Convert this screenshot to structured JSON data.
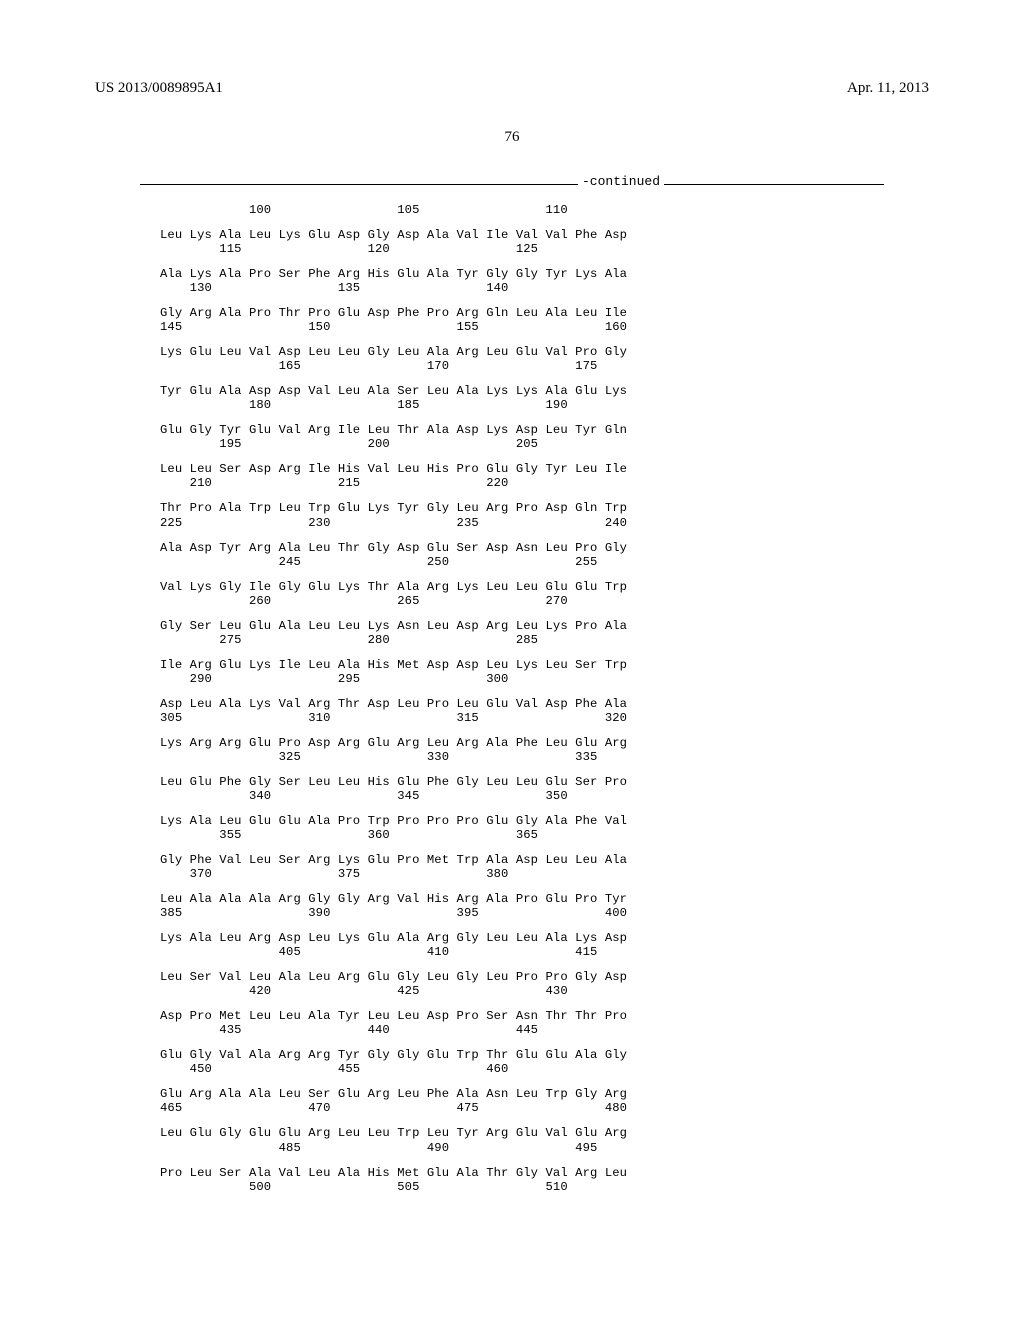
{
  "header": {
    "left": "US 2013/0089895A1",
    "right": "Apr. 11, 2013"
  },
  "page_number": "76",
  "continued_label": "-continued",
  "sequence_rows": [
    {
      "aa": "",
      "nums": "            100                 105                 110"
    },
    {
      "aa": "Leu Lys Ala Leu Lys Glu Asp Gly Asp Ala Val Ile Val Val Phe Asp",
      "nums": "        115                 120                 125"
    },
    {
      "aa": "Ala Lys Ala Pro Ser Phe Arg His Glu Ala Tyr Gly Gly Tyr Lys Ala",
      "nums": "    130                 135                 140"
    },
    {
      "aa": "Gly Arg Ala Pro Thr Pro Glu Asp Phe Pro Arg Gln Leu Ala Leu Ile",
      "nums": "145                 150                 155                 160"
    },
    {
      "aa": "Lys Glu Leu Val Asp Leu Leu Gly Leu Ala Arg Leu Glu Val Pro Gly",
      "nums": "                165                 170                 175"
    },
    {
      "aa": "Tyr Glu Ala Asp Asp Val Leu Ala Ser Leu Ala Lys Lys Ala Glu Lys",
      "nums": "            180                 185                 190"
    },
    {
      "aa": "Glu Gly Tyr Glu Val Arg Ile Leu Thr Ala Asp Lys Asp Leu Tyr Gln",
      "nums": "        195                 200                 205"
    },
    {
      "aa": "Leu Leu Ser Asp Arg Ile His Val Leu His Pro Glu Gly Tyr Leu Ile",
      "nums": "    210                 215                 220"
    },
    {
      "aa": "Thr Pro Ala Trp Leu Trp Glu Lys Tyr Gly Leu Arg Pro Asp Gln Trp",
      "nums": "225                 230                 235                 240"
    },
    {
      "aa": "Ala Asp Tyr Arg Ala Leu Thr Gly Asp Glu Ser Asp Asn Leu Pro Gly",
      "nums": "                245                 250                 255"
    },
    {
      "aa": "Val Lys Gly Ile Gly Glu Lys Thr Ala Arg Lys Leu Leu Glu Glu Trp",
      "nums": "            260                 265                 270"
    },
    {
      "aa": "Gly Ser Leu Glu Ala Leu Leu Lys Asn Leu Asp Arg Leu Lys Pro Ala",
      "nums": "        275                 280                 285"
    },
    {
      "aa": "Ile Arg Glu Lys Ile Leu Ala His Met Asp Asp Leu Lys Leu Ser Trp",
      "nums": "    290                 295                 300"
    },
    {
      "aa": "Asp Leu Ala Lys Val Arg Thr Asp Leu Pro Leu Glu Val Asp Phe Ala",
      "nums": "305                 310                 315                 320"
    },
    {
      "aa": "Lys Arg Arg Glu Pro Asp Arg Glu Arg Leu Arg Ala Phe Leu Glu Arg",
      "nums": "                325                 330                 335"
    },
    {
      "aa": "Leu Glu Phe Gly Ser Leu Leu His Glu Phe Gly Leu Leu Glu Ser Pro",
      "nums": "            340                 345                 350"
    },
    {
      "aa": "Lys Ala Leu Glu Glu Ala Pro Trp Pro Pro Pro Glu Gly Ala Phe Val",
      "nums": "        355                 360                 365"
    },
    {
      "aa": "Gly Phe Val Leu Ser Arg Lys Glu Pro Met Trp Ala Asp Leu Leu Ala",
      "nums": "    370                 375                 380"
    },
    {
      "aa": "Leu Ala Ala Ala Arg Gly Gly Arg Val His Arg Ala Pro Glu Pro Tyr",
      "nums": "385                 390                 395                 400"
    },
    {
      "aa": "Lys Ala Leu Arg Asp Leu Lys Glu Ala Arg Gly Leu Leu Ala Lys Asp",
      "nums": "                405                 410                 415"
    },
    {
      "aa": "Leu Ser Val Leu Ala Leu Arg Glu Gly Leu Gly Leu Pro Pro Gly Asp",
      "nums": "            420                 425                 430"
    },
    {
      "aa": "Asp Pro Met Leu Leu Ala Tyr Leu Leu Asp Pro Ser Asn Thr Thr Pro",
      "nums": "        435                 440                 445"
    },
    {
      "aa": "Glu Gly Val Ala Arg Arg Tyr Gly Gly Glu Trp Thr Glu Glu Ala Gly",
      "nums": "    450                 455                 460"
    },
    {
      "aa": "Glu Arg Ala Ala Leu Ser Glu Arg Leu Phe Ala Asn Leu Trp Gly Arg",
      "nums": "465                 470                 475                 480"
    },
    {
      "aa": "Leu Glu Gly Glu Glu Arg Leu Leu Trp Leu Tyr Arg Glu Val Glu Arg",
      "nums": "                485                 490                 495"
    },
    {
      "aa": "Pro Leu Ser Ala Val Leu Ala His Met Glu Ala Thr Gly Val Arg Leu",
      "nums": "            500                 505                 510"
    }
  ]
}
